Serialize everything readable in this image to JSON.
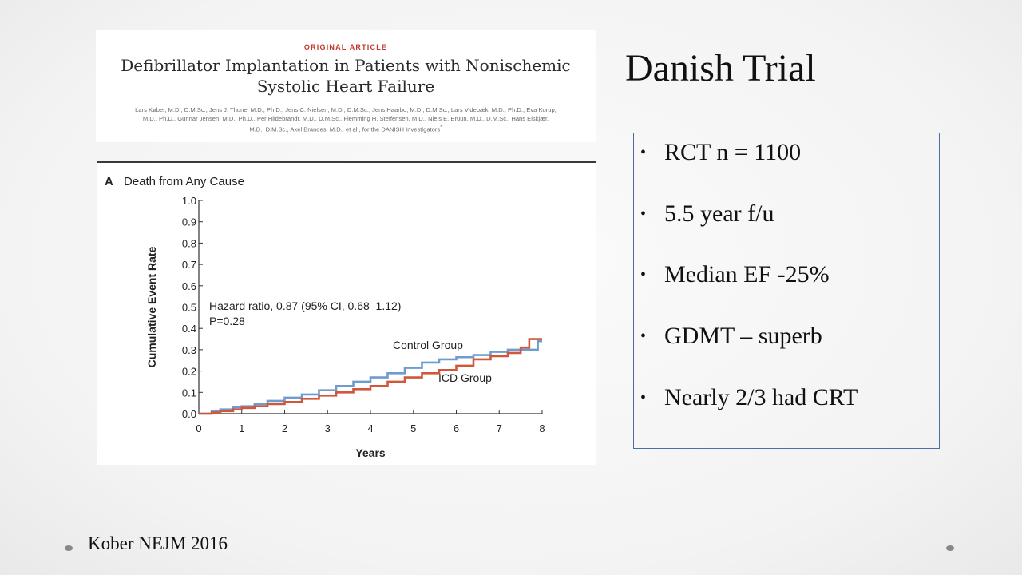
{
  "slide": {
    "title": "Danish Trial",
    "citation": "Kober NEJM 2016",
    "bullet_symbol": "•",
    "bullets": [
      "RCT n = 1100",
      "5.5  year f/u",
      "Median EF -25%",
      "GDMT – superb",
      "Nearly 2/3 had CRT"
    ]
  },
  "article": {
    "kicker": "ORIGINAL ARTICLE",
    "title_line1": "Defibrillator Implantation in Patients with Nonischemic",
    "title_line2": "Systolic Heart Failure",
    "authors_line1": "Lars Køber, M.D., D.M.Sc., Jens J. Thune, M.D., Ph.D., Jens C. Nielsen, M.D., D.M.Sc., Jens Haarbo, M.D., D.M.Sc., Lars Videbæk, M.D., Ph.D., Eva Korup,",
    "authors_line2": "M.D., Ph.D., Gunnar Jensen, M.D., Ph.D., Per Hildebrandt, M.D., D.M.Sc., Flemming H. Steffensen, M.D., Niels E. Bruun, M.D., D.M.Sc., Hans Eiskjær,",
    "authors_line3_a": "M.D., D.M.Sc., Axel Brandes, M.D., ",
    "authors_line3_etal": "et al.",
    "authors_line3_b": ", for the DANISH Investigators",
    "authors_mark": "*"
  },
  "colors": {
    "control": "#6f9ccf",
    "icd": "#d2573a",
    "axis": "#333333",
    "box_border": "#4a6fa5",
    "kicker": "#c0392b"
  },
  "chart_data": {
    "type": "line",
    "panel_letter": "A",
    "title": "Death from Any Cause",
    "xlabel": "Years",
    "ylabel": "Cumulative Event Rate",
    "xlim": [
      0,
      8
    ],
    "ylim": [
      0,
      1.0
    ],
    "xticks": [
      0,
      1,
      2,
      3,
      4,
      5,
      6,
      7,
      8
    ],
    "yticks": [
      0.0,
      0.1,
      0.2,
      0.3,
      0.4,
      0.5,
      0.6,
      0.7,
      0.8,
      0.9,
      1.0
    ],
    "grid": false,
    "annotations": [
      "Hazard ratio, 0.87 (95% CI, 0.68–1.12)",
      "P=0.28"
    ],
    "series": [
      {
        "name": "Control Group",
        "color": "#6f9ccf",
        "x": [
          0,
          0.3,
          0.5,
          0.8,
          1.0,
          1.3,
          1.6,
          2.0,
          2.4,
          2.8,
          3.2,
          3.6,
          4.0,
          4.4,
          4.8,
          5.2,
          5.6,
          6.0,
          6.4,
          6.8,
          7.2,
          7.6,
          7.8,
          7.9,
          8.0
        ],
        "y": [
          0,
          0.01,
          0.02,
          0.03,
          0.035,
          0.045,
          0.06,
          0.075,
          0.09,
          0.11,
          0.13,
          0.15,
          0.17,
          0.19,
          0.215,
          0.24,
          0.255,
          0.265,
          0.275,
          0.29,
          0.3,
          0.3,
          0.3,
          0.34,
          0.34
        ]
      },
      {
        "name": "ICD Group",
        "color": "#d2573a",
        "x": [
          0,
          0.3,
          0.5,
          0.8,
          1.0,
          1.3,
          1.6,
          2.0,
          2.4,
          2.8,
          3.2,
          3.6,
          4.0,
          4.4,
          4.8,
          5.2,
          5.6,
          6.0,
          6.4,
          6.8,
          7.2,
          7.5,
          7.7,
          8.0
        ],
        "y": [
          0,
          0.005,
          0.012,
          0.02,
          0.027,
          0.035,
          0.045,
          0.055,
          0.07,
          0.085,
          0.1,
          0.115,
          0.13,
          0.15,
          0.17,
          0.19,
          0.205,
          0.225,
          0.255,
          0.27,
          0.285,
          0.31,
          0.35,
          0.35
        ]
      }
    ]
  }
}
